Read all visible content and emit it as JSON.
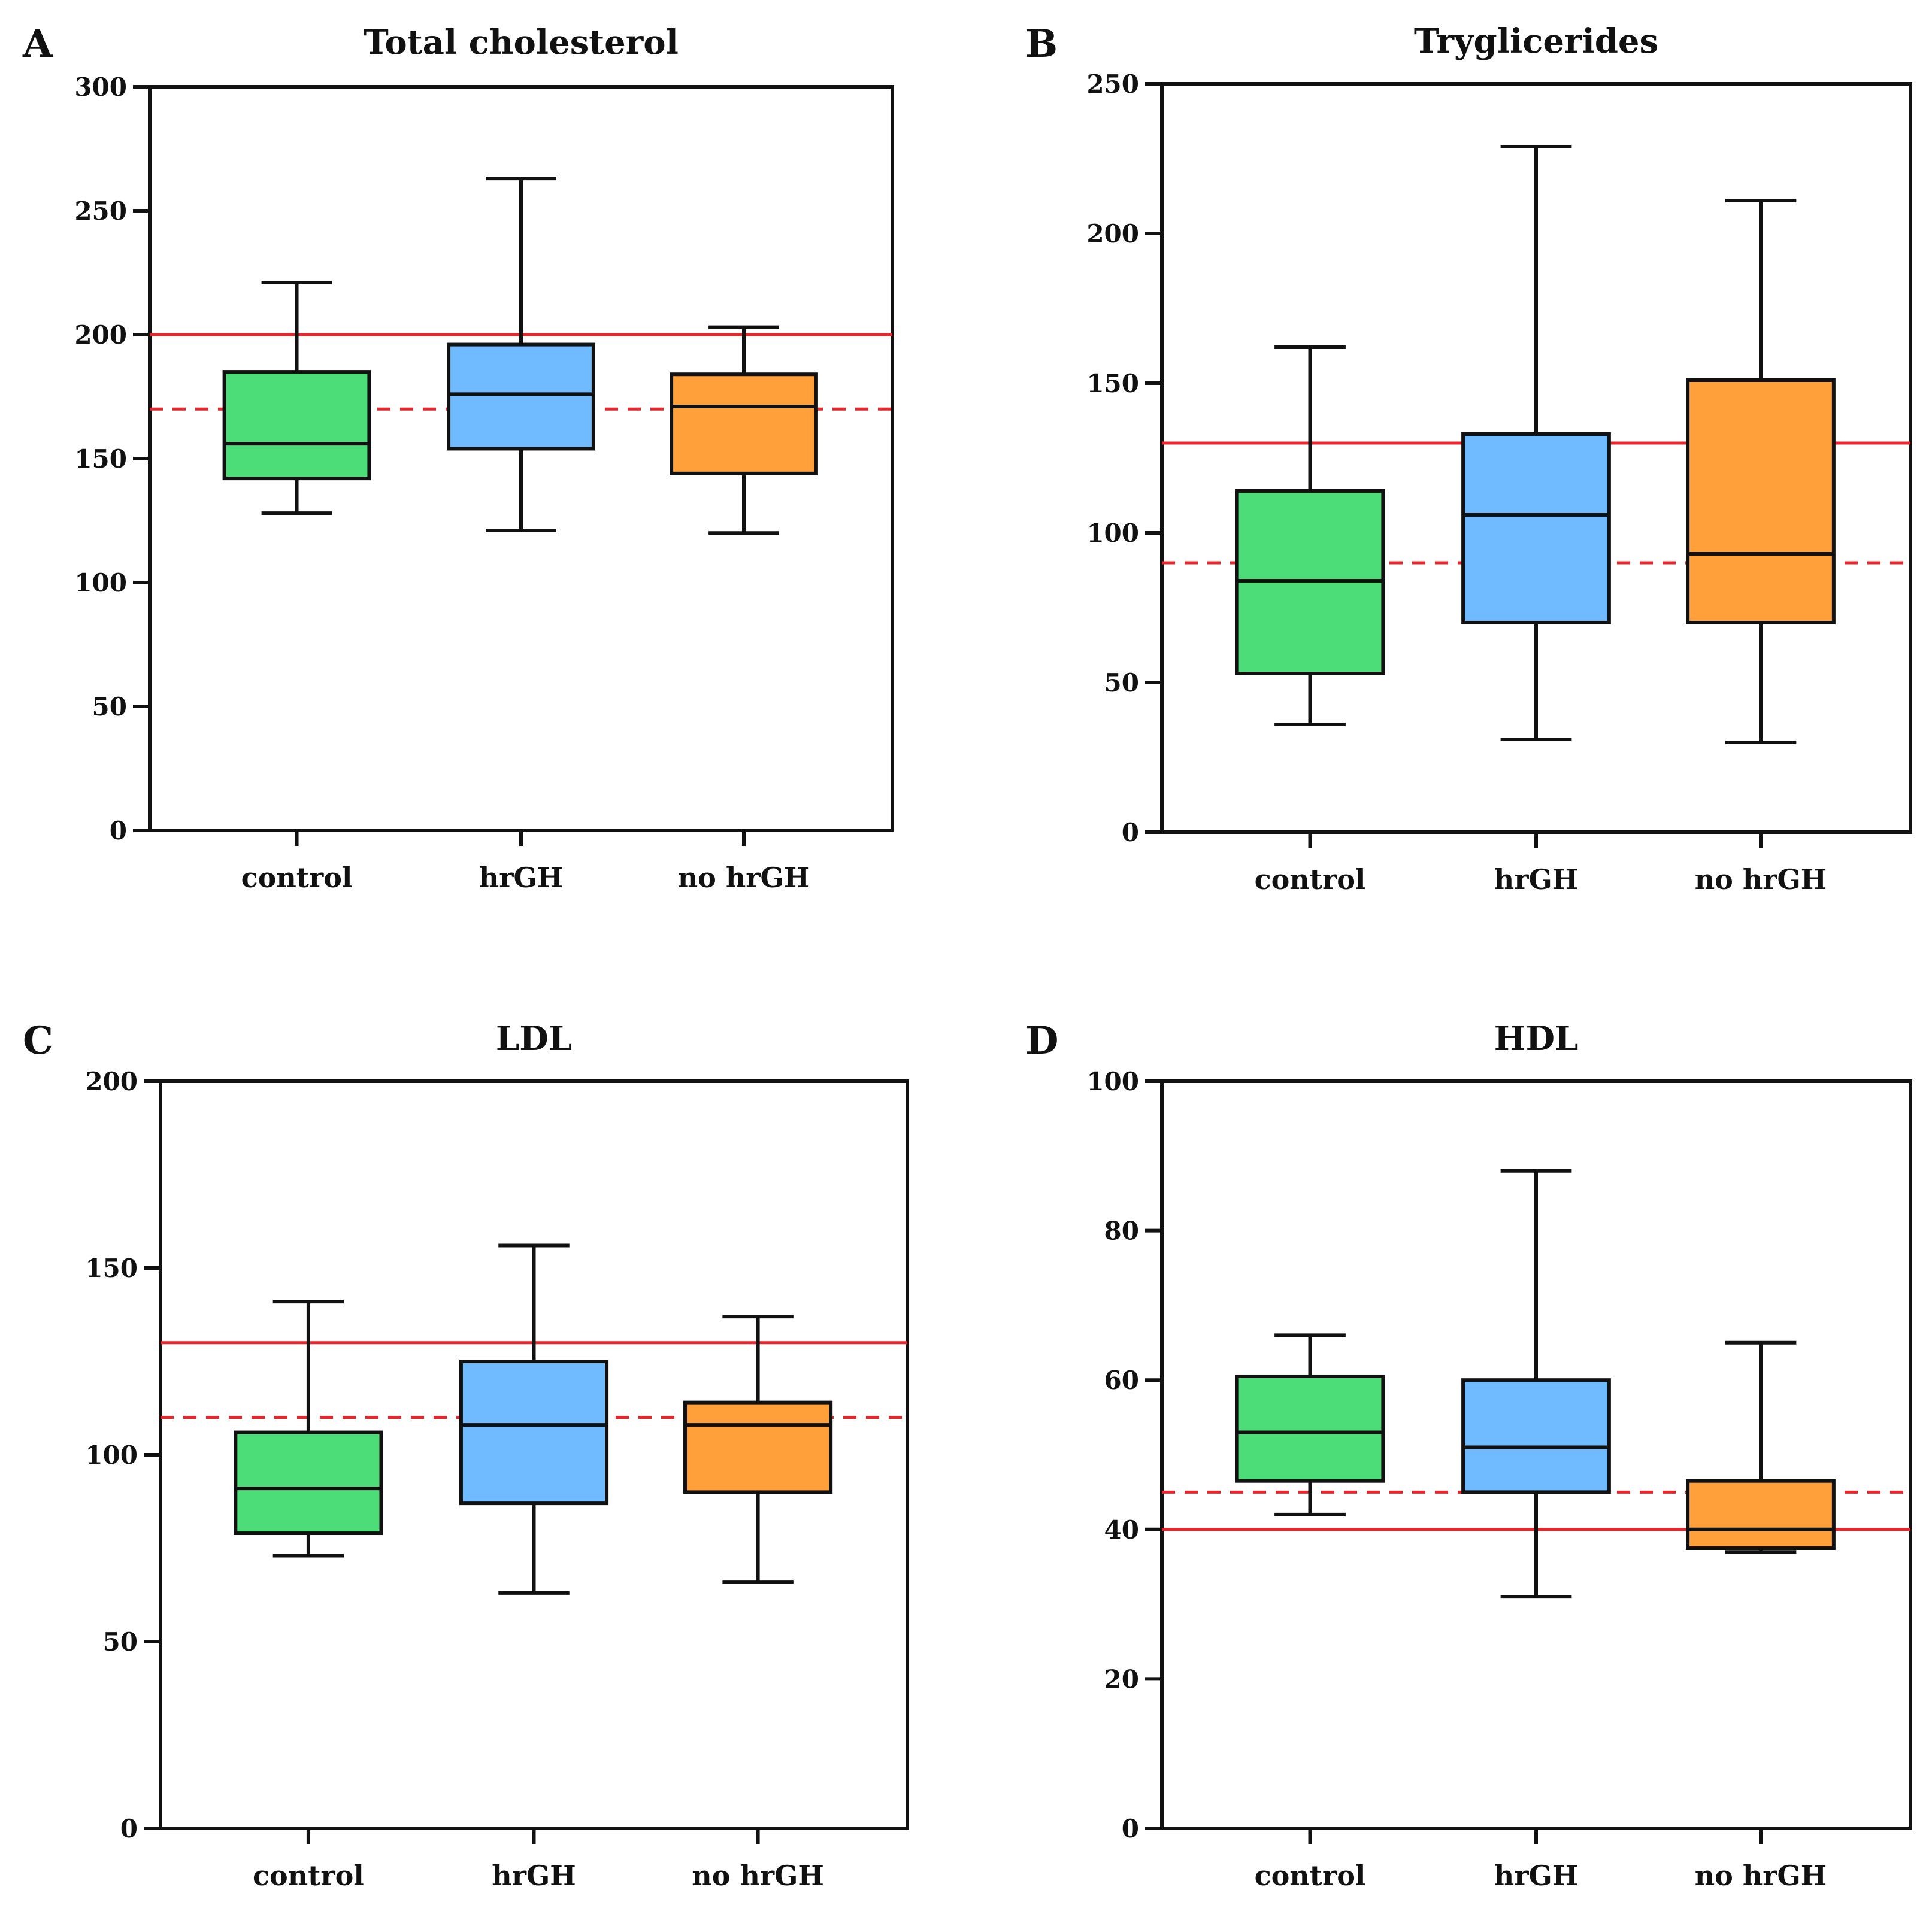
{
  "figure": {
    "description_label": "Lipid profile boxplots"
  },
  "chart_data": [
    {
      "type": "boxplot",
      "panel_label": "A",
      "title": "Total cholesterol",
      "xlabel": "",
      "ylabel": "",
      "ylim": [
        0,
        300
      ],
      "yticks": [
        0,
        50,
        100,
        150,
        200,
        250,
        300
      ],
      "categories": [
        "control",
        "hrGH",
        "no hrGH"
      ],
      "colors": [
        "#4cdc78",
        "#70bbff",
        "#ffa03a"
      ],
      "boxes": [
        {
          "name": "control",
          "min": 128,
          "q1": 142,
          "median": 156,
          "q3": 185,
          "max": 221
        },
        {
          "name": "hrGH",
          "min": 121,
          "q1": 154,
          "median": 176,
          "q3": 196,
          "max": 263
        },
        {
          "name": "no hrGH",
          "min": 120,
          "q1": 144,
          "median": 171,
          "q3": 184,
          "max": 203
        }
      ],
      "reference_lines": [
        {
          "value": 200,
          "style": "solid",
          "color": "#e8262b"
        },
        {
          "value": 170,
          "style": "dashed",
          "color": "#e8262b"
        }
      ]
    },
    {
      "type": "boxplot",
      "panel_label": "B",
      "title": "Tryglicerides",
      "xlabel": "",
      "ylabel": "",
      "ylim": [
        0,
        250
      ],
      "yticks": [
        0,
        50,
        100,
        150,
        200,
        250
      ],
      "categories": [
        "control",
        "hrGH",
        "no hrGH"
      ],
      "colors": [
        "#4cdc78",
        "#70bbff",
        "#ffa03a"
      ],
      "boxes": [
        {
          "name": "control",
          "min": 36,
          "q1": 53,
          "median": 84,
          "q3": 114,
          "max": 162
        },
        {
          "name": "hrGH",
          "min": 31,
          "q1": 70,
          "median": 106,
          "q3": 133,
          "max": 229
        },
        {
          "name": "no hrGH",
          "min": 30,
          "q1": 70,
          "median": 93,
          "q3": 151,
          "max": 211
        }
      ],
      "reference_lines": [
        {
          "value": 130,
          "style": "solid",
          "color": "#e8262b"
        },
        {
          "value": 90,
          "style": "dashed",
          "color": "#e8262b"
        }
      ]
    },
    {
      "type": "boxplot",
      "panel_label": "C",
      "title": "LDL",
      "xlabel": "",
      "ylabel": "",
      "ylim": [
        0,
        200
      ],
      "yticks": [
        0,
        50,
        100,
        150,
        200
      ],
      "categories": [
        "control",
        "hrGH",
        "no hrGH"
      ],
      "colors": [
        "#4cdc78",
        "#70bbff",
        "#ffa03a"
      ],
      "boxes": [
        {
          "name": "control",
          "min": 73,
          "q1": 79,
          "median": 91,
          "q3": 106,
          "max": 141
        },
        {
          "name": "hrGH",
          "min": 63,
          "q1": 87,
          "median": 108,
          "q3": 125,
          "max": 156
        },
        {
          "name": "no hrGH",
          "min": 66,
          "q1": 90,
          "median": 108,
          "q3": 114,
          "max": 137
        }
      ],
      "reference_lines": [
        {
          "value": 130,
          "style": "solid",
          "color": "#e8262b"
        },
        {
          "value": 110,
          "style": "dashed",
          "color": "#e8262b"
        }
      ]
    },
    {
      "type": "boxplot",
      "panel_label": "D",
      "title": "HDL",
      "xlabel": "",
      "ylabel": "",
      "ylim": [
        0,
        100
      ],
      "yticks": [
        0,
        20,
        40,
        60,
        80,
        100
      ],
      "categories": [
        "control",
        "hrGH",
        "no hrGH"
      ],
      "colors": [
        "#4cdc78",
        "#70bbff",
        "#ffa03a"
      ],
      "boxes": [
        {
          "name": "control",
          "min": 42,
          "q1": 46.5,
          "median": 53,
          "q3": 60.5,
          "max": 66
        },
        {
          "name": "hrGH",
          "min": 31,
          "q1": 45,
          "median": 51,
          "q3": 60,
          "max": 88
        },
        {
          "name": "no hrGH",
          "min": 37,
          "q1": 37.5,
          "median": 40,
          "q3": 46.5,
          "max": 65
        }
      ],
      "reference_lines": [
        {
          "value": 40,
          "style": "solid",
          "color": "#e8262b"
        },
        {
          "value": 45,
          "style": "dashed",
          "color": "#e8262b"
        }
      ]
    }
  ]
}
